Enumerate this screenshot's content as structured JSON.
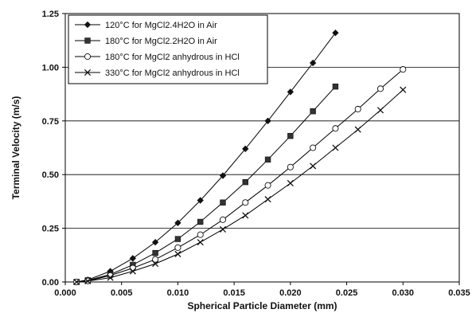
{
  "chart_data": {
    "type": "line",
    "title": "",
    "xlabel": "Spherical Particle Diameter (mm)",
    "ylabel": "Terminal Velocity (m/s)",
    "xlim": [
      0.0,
      0.035
    ],
    "ylim": [
      0.0,
      1.25
    ],
    "xticks": [
      "0.000",
      "0.005",
      "0.010",
      "0.015",
      "0.020",
      "0.025",
      "0.030",
      "0.035"
    ],
    "yticks": [
      "0.00",
      "0.25",
      "0.50",
      "0.75",
      "1.00",
      "1.25"
    ],
    "grid": "horizontal",
    "legend_position": "top-left",
    "series": [
      {
        "name": "120°C for MgCl2.4H2O in Air",
        "marker": "diamond-filled",
        "color": "#000000",
        "x": [
          0.001,
          0.002,
          0.004,
          0.006,
          0.008,
          0.01,
          0.012,
          0.014,
          0.016,
          0.018,
          0.02,
          0.022,
          0.024
        ],
        "y": [
          0.0,
          0.01,
          0.05,
          0.11,
          0.185,
          0.275,
          0.38,
          0.495,
          0.62,
          0.75,
          0.885,
          1.02,
          1.16
        ]
      },
      {
        "name": "180°C for MgCl2.2H2O in Air",
        "marker": "square-filled",
        "color": "#000000",
        "x": [
          0.001,
          0.002,
          0.004,
          0.006,
          0.008,
          0.01,
          0.012,
          0.014,
          0.016,
          0.018,
          0.02,
          0.022,
          0.024
        ],
        "y": [
          0.0,
          0.008,
          0.035,
          0.08,
          0.135,
          0.2,
          0.28,
          0.37,
          0.465,
          0.57,
          0.68,
          0.795,
          0.91
        ]
      },
      {
        "name": "180°C for MgCl2 anhydrous in HCl",
        "marker": "circle-open",
        "color": "#000000",
        "x": [
          0.001,
          0.002,
          0.004,
          0.006,
          0.008,
          0.01,
          0.012,
          0.014,
          0.016,
          0.018,
          0.02,
          0.022,
          0.024,
          0.026,
          0.028,
          0.03
        ],
        "y": [
          0.0,
          0.005,
          0.03,
          0.065,
          0.105,
          0.16,
          0.22,
          0.29,
          0.37,
          0.45,
          0.535,
          0.625,
          0.715,
          0.805,
          0.9,
          0.99
        ]
      },
      {
        "name": "330°C for MgCl2 anhydrous in HCl",
        "marker": "x",
        "color": "#000000",
        "x": [
          0.001,
          0.002,
          0.004,
          0.006,
          0.008,
          0.01,
          0.012,
          0.014,
          0.016,
          0.018,
          0.02,
          0.022,
          0.024,
          0.026,
          0.028,
          0.03
        ],
        "y": [
          0.0,
          0.004,
          0.02,
          0.05,
          0.085,
          0.13,
          0.185,
          0.245,
          0.31,
          0.385,
          0.46,
          0.54,
          0.625,
          0.71,
          0.8,
          0.895
        ]
      }
    ]
  }
}
